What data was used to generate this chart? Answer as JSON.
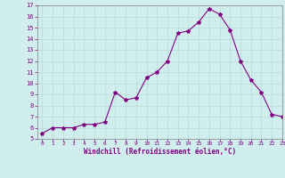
{
  "x": [
    0,
    1,
    2,
    3,
    4,
    5,
    6,
    7,
    8,
    9,
    10,
    11,
    12,
    13,
    14,
    15,
    16,
    17,
    18,
    19,
    20,
    21,
    22,
    23
  ],
  "y": [
    5.5,
    6.0,
    6.0,
    6.0,
    6.3,
    6.3,
    6.5,
    9.2,
    8.5,
    8.7,
    10.5,
    11.0,
    12.0,
    14.5,
    14.7,
    15.5,
    16.7,
    16.2,
    14.8,
    12.0,
    10.3,
    9.2,
    7.2,
    7.0
  ],
  "line_color": "#800080",
  "marker": "*",
  "marker_size": 3,
  "bg_color": "#d0eeee",
  "grid_color": "#b8d8d8",
  "xlabel": "Windchill (Refroidissement éolien,°C)",
  "tick_color": "#800080",
  "ylim": [
    5,
    17
  ],
  "yticks": [
    5,
    6,
    7,
    8,
    9,
    10,
    11,
    12,
    13,
    14,
    15,
    16,
    17
  ],
  "xticks": [
    0,
    1,
    2,
    3,
    4,
    5,
    6,
    7,
    8,
    9,
    10,
    11,
    12,
    13,
    14,
    15,
    16,
    17,
    18,
    19,
    20,
    21,
    22,
    23
  ],
  "xlim": [
    -0.5,
    23
  ]
}
